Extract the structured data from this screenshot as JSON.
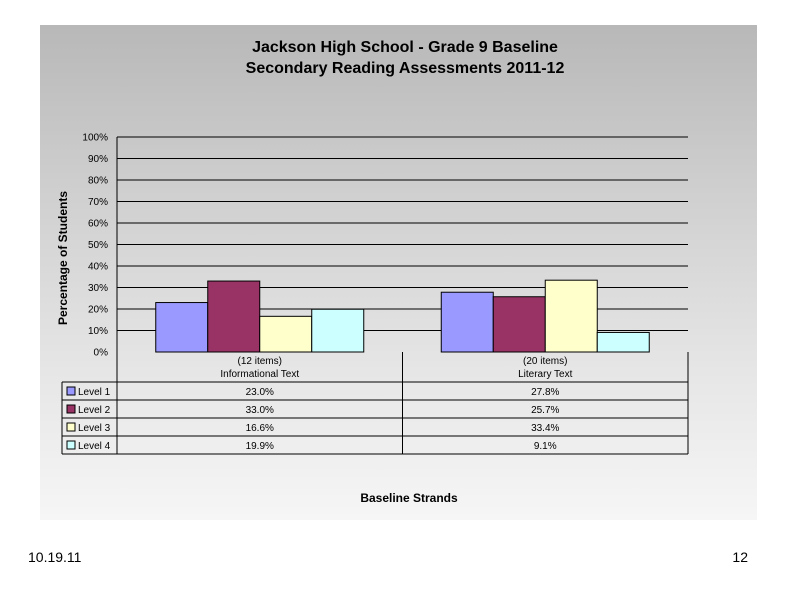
{
  "slide": {
    "footer_left": "10.19.11",
    "footer_right": "12"
  },
  "chart_data": {
    "type": "bar",
    "title": "Jackson High School - Grade 9 Baseline",
    "subtitle": "Secondary Reading Assessments 2011-12",
    "ylabel": "Percentage of Students",
    "xlabel": "Baseline Strands",
    "ylim": [
      0,
      100
    ],
    "yticks": [
      "0%",
      "10%",
      "20%",
      "30%",
      "40%",
      "50%",
      "60%",
      "70%",
      "80%",
      "90%",
      "100%"
    ],
    "grid": true,
    "categories": [
      {
        "line1": "(12 items)",
        "line2": "Informational Text"
      },
      {
        "line1": "(20 items)",
        "line2": "Literary Text"
      }
    ],
    "series": [
      {
        "name": "Level 1",
        "color": "#9999ff",
        "values": [
          23.0,
          27.8
        ],
        "labels": [
          "23.0%",
          "27.8%"
        ]
      },
      {
        "name": "Level 2",
        "color": "#993366",
        "values": [
          33.0,
          25.7
        ],
        "labels": [
          "33.0%",
          "25.7%"
        ]
      },
      {
        "name": "Level 3",
        "color": "#ffffcc",
        "values": [
          16.6,
          33.4
        ],
        "labels": [
          "16.6%",
          "33.4%"
        ]
      },
      {
        "name": "Level 4",
        "color": "#ccffff",
        "values": [
          19.9,
          9.1
        ],
        "labels": [
          "19.9%",
          "9.1%"
        ]
      }
    ]
  }
}
